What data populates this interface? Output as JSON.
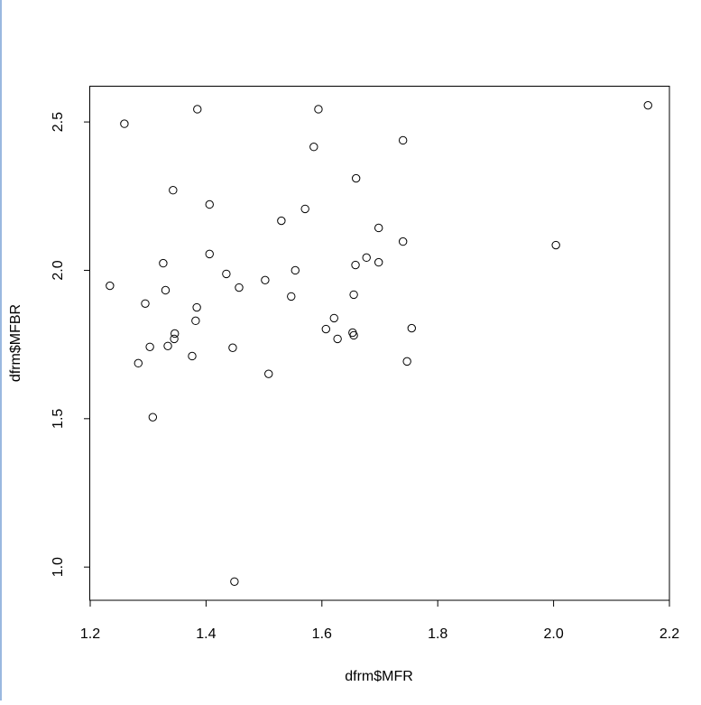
{
  "chart_data": {
    "type": "scatter",
    "xlabel": "dfrm$MFR",
    "ylabel": "dfrm$MFBR",
    "xlim": [
      1.2,
      2.2
    ],
    "ylim": [
      0.888,
      2.622
    ],
    "xticks": [
      {
        "value": 1.2,
        "label": "1.2"
      },
      {
        "value": 1.4,
        "label": "1.4"
      },
      {
        "value": 1.6,
        "label": "1.6"
      },
      {
        "value": 1.8,
        "label": "1.8"
      },
      {
        "value": 2.0,
        "label": "2.0"
      },
      {
        "value": 2.2,
        "label": "2.2"
      }
    ],
    "yticks": [
      {
        "value": 1.0,
        "label": "1.0"
      },
      {
        "value": 1.5,
        "label": "1.5"
      },
      {
        "value": 2.0,
        "label": "2.0"
      },
      {
        "value": 2.5,
        "label": "2.5"
      }
    ],
    "color": "#000000",
    "x": [
      1.234,
      1.259,
      1.385,
      1.283,
      1.295,
      1.303,
      1.308,
      1.326,
      1.33,
      1.334,
      1.343,
      1.346,
      1.345,
      1.376,
      1.384,
      1.382,
      1.406,
      1.406,
      1.435,
      1.446,
      1.449,
      1.457,
      1.502,
      1.508,
      1.53,
      1.547,
      1.554,
      1.571,
      1.586,
      1.594,
      1.607,
      1.621,
      1.627,
      1.653,
      1.655,
      1.655,
      1.658,
      1.659,
      1.677,
      1.698,
      1.698,
      1.74,
      1.74,
      1.747,
      1.755,
      2.004,
      2.163
    ],
    "values": [
      1.948,
      2.494,
      2.543,
      1.687,
      1.888,
      1.742,
      1.505,
      2.024,
      1.933,
      1.745,
      2.27,
      1.787,
      1.769,
      1.711,
      1.875,
      1.83,
      2.222,
      2.055,
      1.988,
      1.739,
      0.951,
      1.942,
      1.967,
      1.651,
      2.167,
      1.912,
      2.0,
      2.207,
      2.416,
      2.543,
      1.802,
      1.839,
      1.769,
      1.79,
      1.781,
      1.918,
      2.018,
      2.31,
      2.043,
      2.027,
      2.143,
      2.438,
      2.097,
      1.693,
      1.805,
      2.085,
      2.556
    ]
  }
}
